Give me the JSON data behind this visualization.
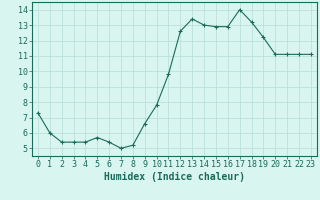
{
  "x": [
    0,
    1,
    2,
    3,
    4,
    5,
    6,
    7,
    8,
    9,
    10,
    11,
    12,
    13,
    14,
    15,
    16,
    17,
    18,
    19,
    20,
    21,
    22,
    23
  ],
  "y": [
    7.3,
    6.0,
    5.4,
    5.4,
    5.4,
    5.7,
    5.4,
    5.0,
    5.2,
    6.6,
    7.8,
    9.8,
    12.6,
    13.4,
    13.0,
    12.9,
    12.9,
    14.0,
    13.2,
    12.2,
    11.1,
    11.1,
    11.1,
    11.1
  ],
  "line_color": "#1a6b5a",
  "marker": "+",
  "marker_size": 3,
  "xlabel": "Humidex (Indice chaleur)",
  "xlim": [
    -0.5,
    23.5
  ],
  "ylim": [
    4.5,
    14.5
  ],
  "yticks": [
    5,
    6,
    7,
    8,
    9,
    10,
    11,
    12,
    13,
    14
  ],
  "xticks": [
    0,
    1,
    2,
    3,
    4,
    5,
    6,
    7,
    8,
    9,
    10,
    11,
    12,
    13,
    14,
    15,
    16,
    17,
    18,
    19,
    20,
    21,
    22,
    23
  ],
  "background_color": "#d8f5f0",
  "grid_color": "#b8dcd6",
  "tick_label_color": "#1a6b5a",
  "xlabel_color": "#1a6b5a",
  "xlabel_fontsize": 7,
  "tick_fontsize": 6,
  "linewidth": 0.8,
  "markeredgewidth": 0.8
}
